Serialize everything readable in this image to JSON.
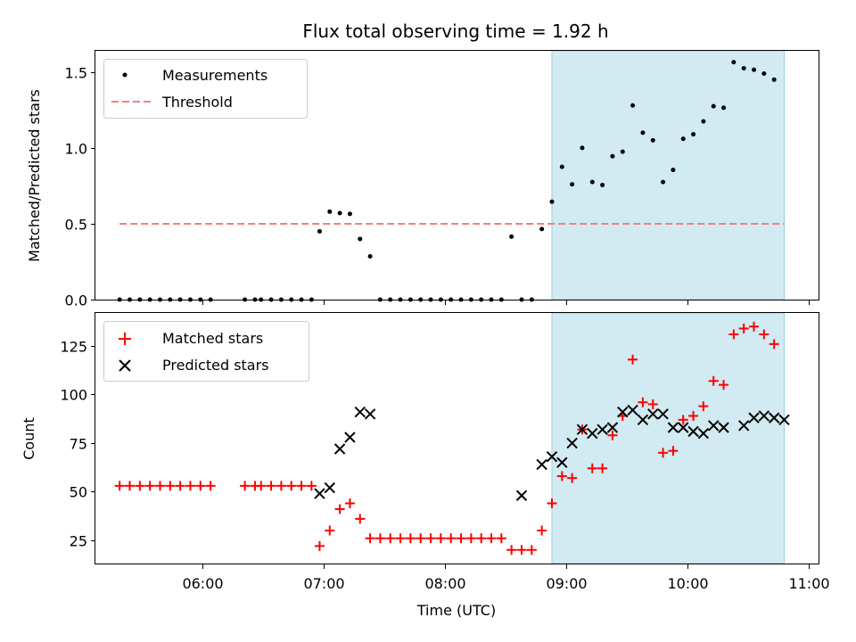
{
  "chart_data": [
    {
      "type": "scatter",
      "title": "Flux total observing time = 1.92 h",
      "xlabel": "",
      "ylabel": "Matched/Predicted stars",
      "ylim": [
        0,
        1.64
      ],
      "yticks": [
        0.0,
        0.5,
        1.0,
        1.5
      ],
      "ytick_labels": [
        "0.0",
        "0.5",
        "1.0",
        "1.5"
      ],
      "xlim": [
        "05:07",
        "11:05"
      ],
      "xticks": [
        "06:00",
        "07:00",
        "08:00",
        "09:00",
        "10:00",
        "11:00"
      ],
      "xtick_labels_visible": false,
      "shaded_region": {
        "x_start": "08:53",
        "x_end": "10:48",
        "color": "#add8e6"
      },
      "legend": {
        "placement": "top-left",
        "entries": [
          "Measurements",
          "Threshold"
        ]
      },
      "series": [
        {
          "name": "Measurements",
          "marker": "dot",
          "color": "#000000",
          "x": [
            "05:19",
            "05:24",
            "05:29",
            "05:34",
            "05:39",
            "05:44",
            "05:49",
            "05:54",
            "05:59",
            "06:04",
            "06:21",
            "06:26",
            "06:29",
            "06:34",
            "06:39",
            "06:44",
            "06:49",
            "06:54",
            "06:58",
            "07:03",
            "07:08",
            "07:13",
            "07:18",
            "07:23",
            "07:28",
            "07:33",
            "07:38",
            "07:43",
            "07:48",
            "07:53",
            "07:58",
            "08:03",
            "08:08",
            "08:13",
            "08:18",
            "08:23",
            "08:28",
            "08:33",
            "08:38",
            "08:43",
            "08:48",
            "08:53",
            "08:58",
            "09:03",
            "09:08",
            "09:13",
            "09:18",
            "09:23",
            "09:28",
            "09:33",
            "09:38",
            "09:43",
            "09:48",
            "09:53",
            "09:58",
            "10:03",
            "10:08",
            "10:13",
            "10:18",
            "10:23",
            "10:28",
            "10:33",
            "10:38",
            "10:43",
            "10:48"
          ],
          "y": [
            0,
            0,
            0,
            0,
            0,
            0,
            0,
            0,
            0,
            0,
            0,
            0,
            0,
            0,
            0,
            0,
            0,
            0,
            0.45,
            0.58,
            0.57,
            0.565,
            0.4,
            0.285,
            0,
            0,
            0,
            0,
            0,
            0,
            0,
            0,
            0,
            0,
            0,
            0,
            0,
            0.415,
            0,
            0,
            0.465,
            0.645,
            0.875,
            0.76,
            1.0,
            0.775,
            0.755,
            0.945,
            0.975,
            1.28,
            1.1,
            1.05,
            0.775,
            0.855,
            1.06,
            1.09,
            1.175,
            1.275,
            1.265,
            1.565,
            1.525,
            1.515,
            1.49,
            1.45,
            null
          ]
        },
        {
          "name": "Threshold",
          "style": "dashed",
          "color": "#f08080",
          "x": [
            "05:19",
            "10:48"
          ],
          "y": [
            0.5,
            0.5
          ]
        }
      ]
    },
    {
      "type": "scatter",
      "xlabel": "Time (UTC)",
      "ylabel": "Count",
      "ylim": [
        13,
        142
      ],
      "yticks": [
        25,
        50,
        75,
        100,
        125
      ],
      "ytick_labels": [
        "25",
        "50",
        "75",
        "100",
        "125"
      ],
      "xlim": [
        "05:07",
        "11:05"
      ],
      "xticks": [
        "06:00",
        "07:00",
        "08:00",
        "09:00",
        "10:00",
        "11:00"
      ],
      "xtick_labels": [
        "06:00",
        "07:00",
        "08:00",
        "09:00",
        "10:00",
        "11:00"
      ],
      "shaded_region": {
        "x_start": "08:53",
        "x_end": "10:48",
        "color": "#add8e6"
      },
      "legend": {
        "placement": "top-left",
        "entries": [
          "Matched stars",
          "Predicted stars"
        ]
      },
      "series": [
        {
          "name": "Matched stars",
          "marker": "plus",
          "color": "#ff0000",
          "x": [
            "05:19",
            "05:24",
            "05:29",
            "05:34",
            "05:39",
            "05:44",
            "05:49",
            "05:54",
            "05:59",
            "06:04",
            "06:21",
            "06:26",
            "06:29",
            "06:34",
            "06:39",
            "06:44",
            "06:49",
            "06:54",
            "06:58",
            "07:03",
            "07:08",
            "07:13",
            "07:18",
            "07:23",
            "07:28",
            "07:33",
            "07:38",
            "07:43",
            "07:48",
            "07:53",
            "07:58",
            "08:03",
            "08:08",
            "08:13",
            "08:18",
            "08:23",
            "08:28",
            "08:33",
            "08:38",
            "08:43",
            "08:48",
            "08:53",
            "08:58",
            "09:03",
            "09:08",
            "09:13",
            "09:18",
            "09:23",
            "09:28",
            "09:33",
            "09:38",
            "09:43",
            "09:48",
            "09:53",
            "09:58",
            "10:03",
            "10:08",
            "10:13",
            "10:18",
            "10:23",
            "10:28",
            "10:33",
            "10:38",
            "10:43",
            "10:48"
          ],
          "y": [
            53,
            53,
            53,
            53,
            53,
            53,
            53,
            53,
            53,
            53,
            53,
            53,
            53,
            53,
            53,
            53,
            53,
            53,
            22,
            30,
            41,
            44,
            36,
            26,
            26,
            26,
            26,
            26,
            26,
            26,
            26,
            26,
            26,
            26,
            26,
            26,
            26,
            20,
            20,
            20,
            30,
            44,
            58,
            57,
            82,
            62,
            62,
            79,
            89,
            118,
            96,
            95,
            70,
            71,
            87,
            89,
            94,
            107,
            105,
            131,
            134,
            135,
            131,
            126,
            null
          ]
        },
        {
          "name": "Predicted stars",
          "marker": "x",
          "color": "#000000",
          "x": [
            "06:58",
            "07:03",
            "07:08",
            "07:13",
            "07:18",
            "07:23",
            "07:28",
            "08:38",
            "08:48",
            "08:53",
            "08:58",
            "09:03",
            "09:08",
            "09:13",
            "09:18",
            "09:23",
            "09:28",
            "09:33",
            "09:38",
            "09:43",
            "09:48",
            "09:53",
            "09:58",
            "10:03",
            "10:08",
            "10:13",
            "10:18",
            "10:23",
            "10:28",
            "10:33",
            "10:38",
            "10:43",
            "10:48"
          ],
          "y": [
            49,
            52,
            72,
            78,
            91,
            90,
            null,
            48,
            64,
            68,
            65,
            75,
            82,
            80,
            82,
            83,
            91,
            92,
            87,
            90,
            90,
            83,
            83,
            81,
            80,
            84,
            83,
            null,
            84,
            88,
            89,
            88,
            87
          ]
        }
      ]
    }
  ]
}
